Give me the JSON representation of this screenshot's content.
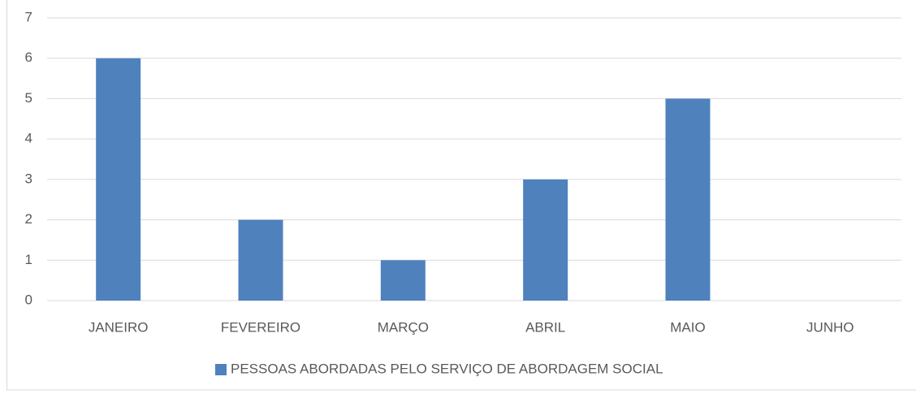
{
  "chart_data": {
    "type": "bar",
    "categories": [
      "JANEIRO",
      "FEVEREIRO",
      "MARÇO",
      "ABRIL",
      "MAIO",
      "JUNHO"
    ],
    "series": [
      {
        "name": "PESSOAS ABORDADAS PELO SERVIÇO DE ABORDAGEM SOCIAL",
        "color": "#4f81bd",
        "values": [
          6,
          2,
          1,
          3,
          5,
          0
        ]
      }
    ],
    "ylim": [
      0,
      7
    ],
    "yticks": [
      0,
      1,
      2,
      3,
      4,
      5,
      6,
      7
    ],
    "grid": true,
    "legend": "bottom"
  }
}
